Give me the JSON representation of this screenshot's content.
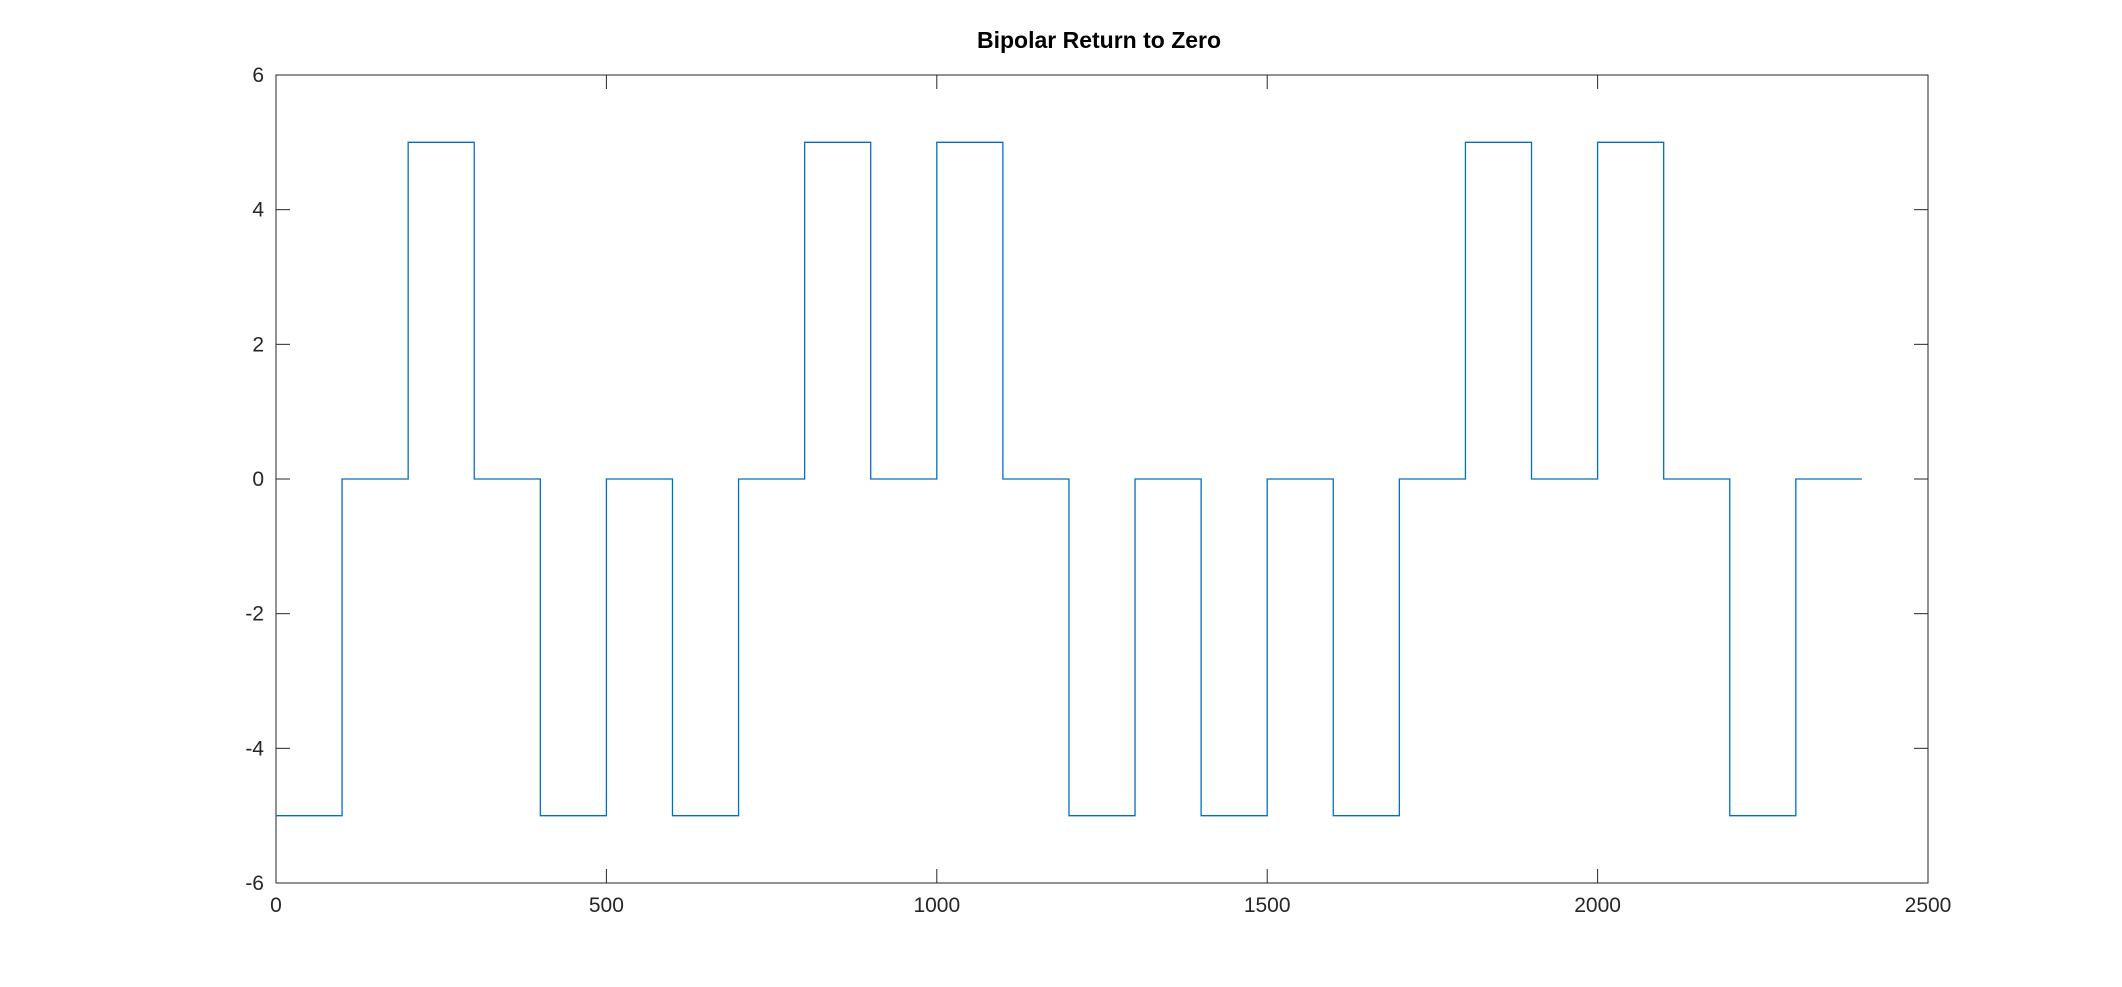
{
  "chart_data": {
    "type": "line",
    "title": "Bipolar Return to Zero",
    "xlabel": "",
    "ylabel": "",
    "xlim": [
      0,
      2500
    ],
    "ylim": [
      -6,
      6
    ],
    "x_ticks": [
      0,
      500,
      1000,
      1500,
      2000,
      2500
    ],
    "y_ticks": [
      -6,
      -4,
      -2,
      0,
      2,
      4,
      6
    ],
    "x_tick_labels": [
      "0",
      "500",
      "1000",
      "1500",
      "2000",
      "2500"
    ],
    "y_tick_labels": [
      "-6",
      "-4",
      "-2",
      "0",
      "2",
      "4",
      "6"
    ],
    "grid": false,
    "box": true,
    "series": [
      {
        "color": "#0072BD",
        "step_width": 100,
        "x_end": 2400,
        "levels": [
          -5,
          0,
          5,
          0,
          -5,
          0,
          -5,
          0,
          5,
          0,
          5,
          0,
          -5,
          0,
          -5,
          0,
          -5,
          0,
          5,
          0,
          5,
          0,
          -5,
          0
        ]
      }
    ]
  }
}
